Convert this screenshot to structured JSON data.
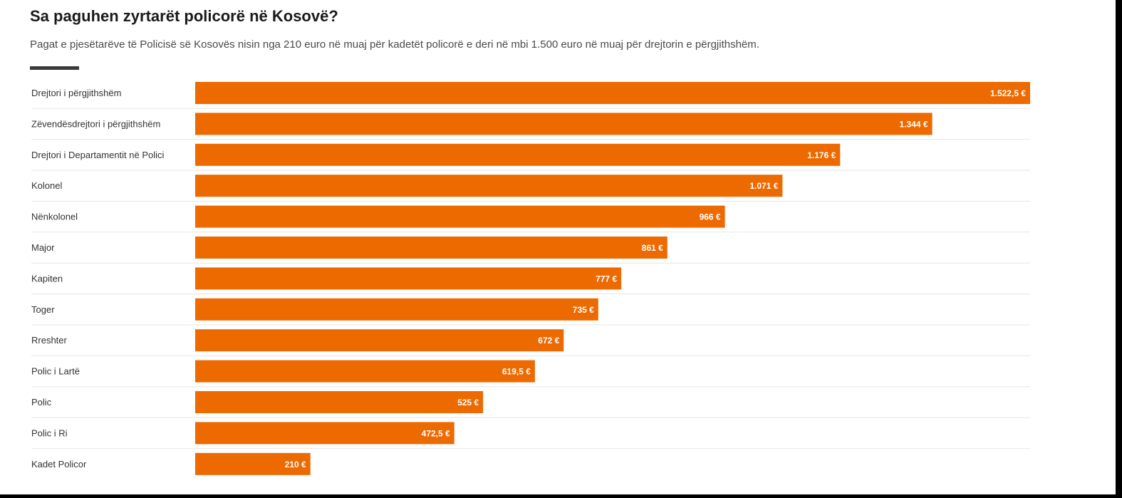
{
  "header": {
    "title": "Sa paguhen zyrtarët policorë në Kosovë?",
    "subtitle": "Pagat e pjesëtarëve të Policisë së Kosovës nisin nga 210 euro në muaj për kadetët policorë e deri në mbi 1.500 euro në muaj për drejtorin e përgjithshëm."
  },
  "chart_data": {
    "type": "bar",
    "orientation": "horizontal",
    "title": "Sa paguhen zyrtarët policorë në Kosovë?",
    "subtitle": "Pagat e pjesëtarëve të Policisë së Kosovës nisin nga 210 euro në muaj për kadetët policorë e deri në mbi 1.500 euro në muaj për drejtorin e përgjithshëm.",
    "categories": [
      "Drejtori i përgjithshëm",
      "Zëvendësdrejtori i përgjithshëm",
      "Drejtori i Departamentit në Polici",
      "Kolonel",
      "Nënkolonel",
      "Major",
      "Kapiten",
      "Toger",
      "Rreshter",
      "Polic i Lartë",
      "Polic",
      "Polic i Ri",
      "Kadet Policor"
    ],
    "values": [
      1522.5,
      1344,
      1176,
      1071,
      966,
      861,
      777,
      735,
      672,
      619.5,
      525,
      472.5,
      210
    ],
    "value_labels": [
      "1.522,5 €",
      "1.344 €",
      "1.176 €",
      "1.071 €",
      "966 €",
      "861 €",
      "777 €",
      "735 €",
      "672 €",
      "619,5 €",
      "525 €",
      "472,5 €",
      "210 €"
    ],
    "xlim": [
      0,
      1522.5
    ],
    "grid": false,
    "legend": "none",
    "bar_color": "#EC6A00"
  }
}
